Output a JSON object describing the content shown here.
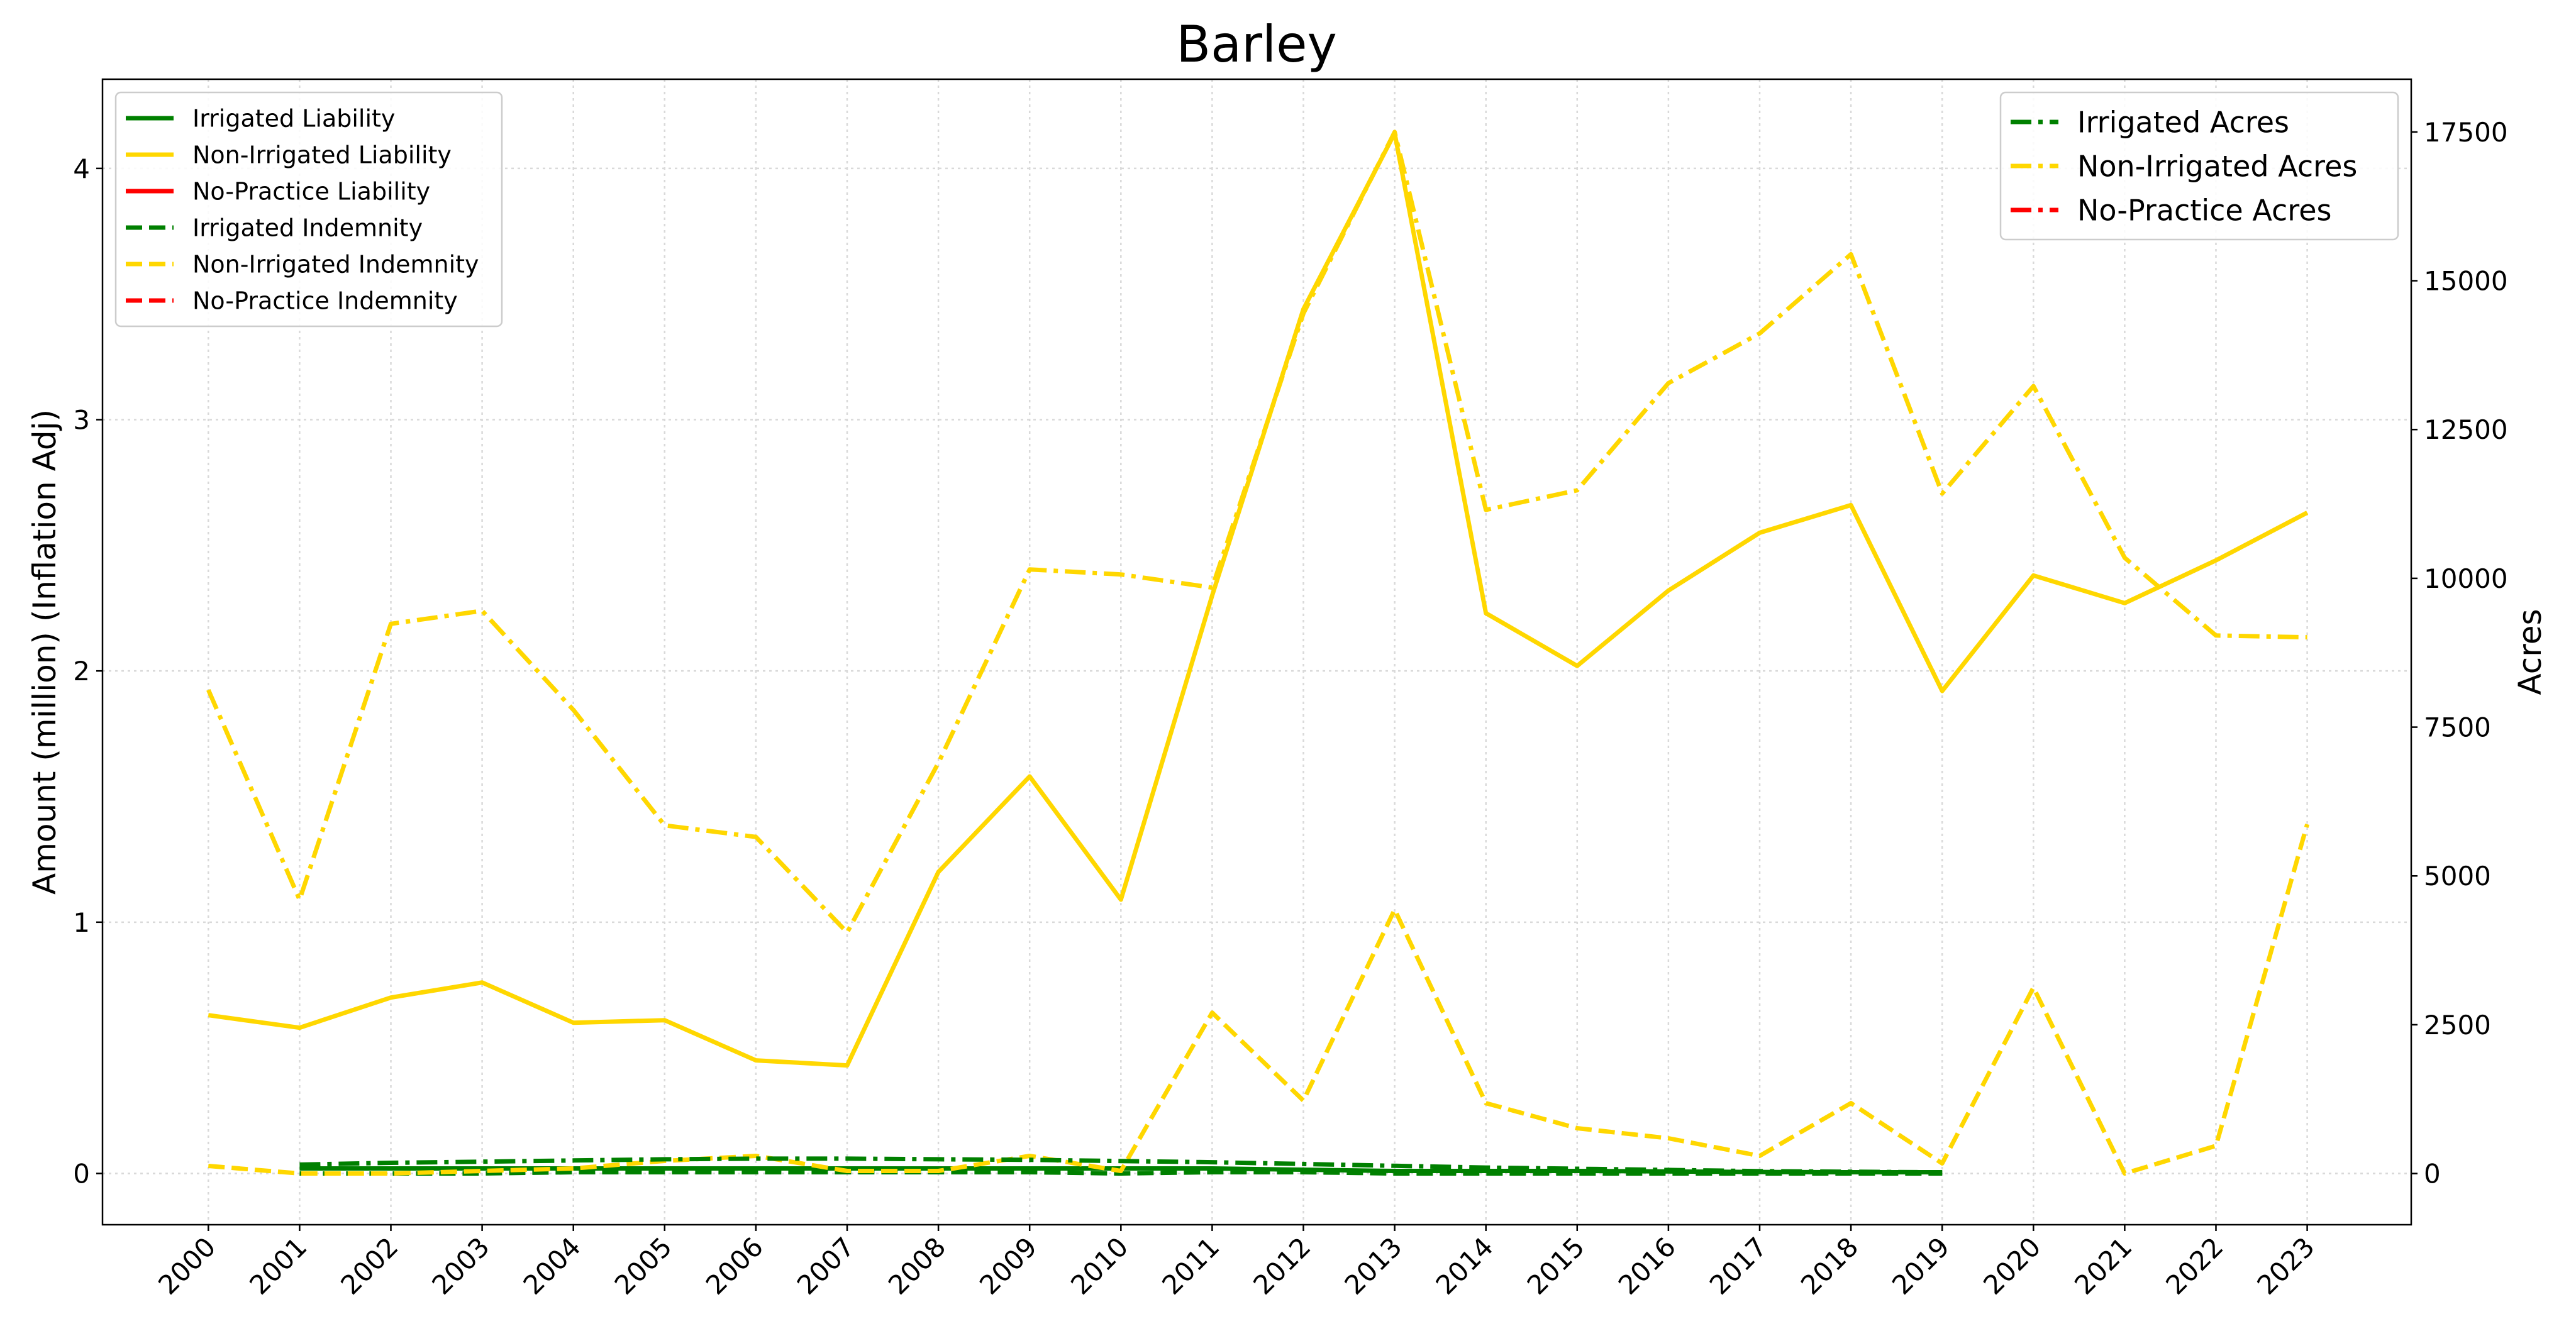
{
  "chart_data": {
    "type": "line",
    "title": "Barley",
    "ylabel": "Amount (million) (Inflation Adj)",
    "y2label": "Acres",
    "x": [
      2000,
      2001,
      2002,
      2003,
      2004,
      2005,
      2006,
      2007,
      2008,
      2009,
      2010,
      2011,
      2012,
      2013,
      2014,
      2015,
      2016,
      2017,
      2018,
      2019,
      2020,
      2021,
      2022,
      2023
    ],
    "xlim": [
      1998.84,
      2024.14
    ],
    "xticks": [
      2000,
      2001,
      2002,
      2003,
      2004,
      2005,
      2006,
      2007,
      2008,
      2009,
      2010,
      2011,
      2012,
      2013,
      2014,
      2015,
      2016,
      2017,
      2018,
      2019,
      2020,
      2021,
      2022,
      2023
    ],
    "ylim": [
      -0.204,
      4.355
    ],
    "yticks": [
      0,
      1,
      2,
      3,
      4
    ],
    "y2lim": [
      -860,
      18386
    ],
    "y2ticks": [
      0,
      2500,
      5000,
      7500,
      10000,
      12500,
      15000,
      17500
    ],
    "grid": true,
    "legend": "upper left",
    "legend2": "upper right",
    "series": [
      {
        "name": "Irrigated Liability",
        "color": "#008000",
        "style": "solid",
        "axis": "y",
        "values": [
          null,
          0.02,
          0.02,
          0.02,
          0.02,
          0.02,
          0.02,
          0.02,
          0.02,
          0.02,
          0.02,
          0.02,
          0.015,
          0.01,
          0.01,
          0.01,
          0.008,
          0.006,
          0.005,
          0.005,
          null,
          null,
          null,
          null
        ]
      },
      {
        "name": "Non-Irrigated Liability",
        "color": "#ffd700",
        "style": "solid",
        "axis": "y",
        "values": [
          0.63,
          0.58,
          0.7,
          0.76,
          0.6,
          0.61,
          0.45,
          0.43,
          1.2,
          1.58,
          1.09,
          2.3,
          3.44,
          4.14,
          2.23,
          2.02,
          2.32,
          2.55,
          2.66,
          1.92,
          2.38,
          2.27,
          2.44,
          2.63
        ]
      },
      {
        "name": "No-Practice Liability",
        "color": "#ff0000",
        "style": "solid",
        "axis": "y",
        "values": [
          null,
          null,
          null,
          null,
          null,
          null,
          null,
          null,
          null,
          null,
          null,
          null,
          null,
          null,
          null,
          null,
          null,
          null,
          null,
          null,
          null,
          null,
          null,
          null
        ]
      },
      {
        "name": "Irrigated Indemnity",
        "color": "#008000",
        "style": "dashed",
        "axis": "y",
        "values": [
          null,
          0.0,
          0.0,
          0.0,
          0.005,
          0.005,
          0.005,
          0.005,
          0.005,
          0.005,
          0.0,
          0.005,
          0.005,
          0.0,
          0.0,
          0.0,
          0.0,
          0.0,
          0.0,
          0.0,
          null,
          null,
          null,
          null
        ]
      },
      {
        "name": "Non-Irrigated Indemnity",
        "color": "#ffd700",
        "style": "dashed",
        "axis": "y",
        "values": [
          0.03,
          0.0,
          0.0,
          0.01,
          0.02,
          0.05,
          0.07,
          0.01,
          0.01,
          0.07,
          0.01,
          0.64,
          0.29,
          1.05,
          0.28,
          0.18,
          0.14,
          0.07,
          0.28,
          0.04,
          0.74,
          0.0,
          0.11,
          1.39
        ]
      },
      {
        "name": "No-Practice Indemnity",
        "color": "#ff0000",
        "style": "dashed",
        "axis": "y",
        "values": [
          null,
          null,
          null,
          null,
          null,
          null,
          null,
          null,
          null,
          null,
          null,
          null,
          null,
          null,
          null,
          null,
          null,
          null,
          null,
          null,
          null,
          null,
          null,
          null
        ]
      },
      {
        "name": "Irrigated Acres",
        "color": "#008000",
        "style": "dashdot",
        "axis": "y2",
        "values": [
          null,
          150,
          180,
          200,
          220,
          240,
          250,
          250,
          240,
          230,
          210,
          190,
          160,
          130,
          100,
          80,
          60,
          40,
          30,
          20,
          null,
          null,
          null,
          null
        ]
      },
      {
        "name": "Non-Irrigated Acres",
        "color": "#ffd700",
        "style": "dashdot",
        "axis": "y2",
        "values": [
          8125,
          4600,
          9235,
          9455,
          7790,
          5850,
          5655,
          4050,
          6900,
          10150,
          10065,
          9845,
          14450,
          17500,
          11150,
          11480,
          13280,
          14115,
          15445,
          11425,
          13230,
          10345,
          9040,
          9010
        ]
      },
      {
        "name": "No-Practice Acres",
        "color": "#ff0000",
        "style": "dashdot",
        "axis": "y2",
        "values": [
          null,
          null,
          null,
          null,
          null,
          null,
          null,
          null,
          null,
          null,
          null,
          null,
          null,
          null,
          null,
          null,
          null,
          null,
          null,
          null,
          null,
          null,
          null,
          null
        ]
      }
    ]
  }
}
